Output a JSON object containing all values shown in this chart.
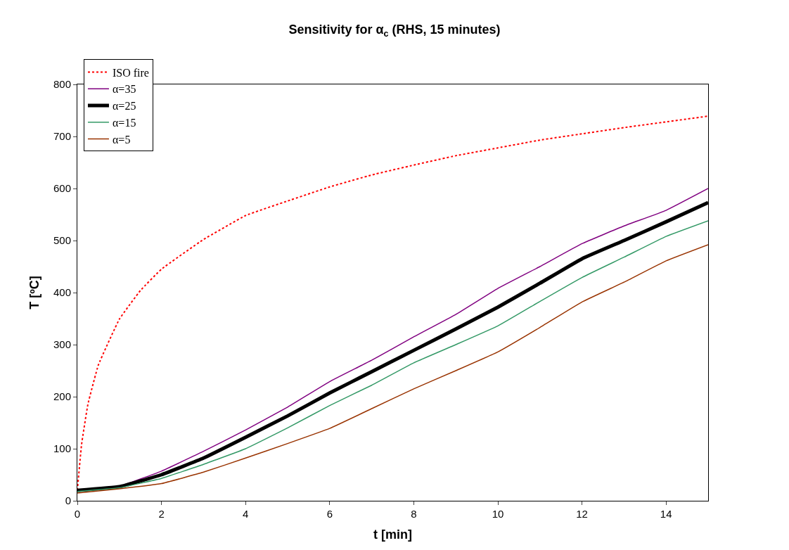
{
  "chart_data": {
    "type": "line",
    "title": "Sensitivity for α$_{c}$ (RHS, 15 minutes)",
    "xlabel": "t [min]",
    "ylabel": "T [ºC]",
    "x": [
      0,
      1,
      2,
      3,
      4,
      5,
      6,
      7,
      8,
      9,
      10,
      11,
      12,
      13,
      14,
      15
    ],
    "series": [
      {
        "name": "ISO fire",
        "color": "#ff0000",
        "line_style": "dotted",
        "x": [
          0,
          0.1,
          0.25,
          0.5,
          1,
          1.5,
          2,
          3,
          4,
          5,
          6,
          7,
          8,
          9,
          10,
          11,
          12,
          13,
          14,
          15
        ],
        "values": [
          20,
          108,
          185,
          261,
          349,
          404,
          445,
          502,
          548,
          576,
          603,
          626,
          645,
          663,
          678,
          693,
          705,
          717,
          728,
          739
        ]
      },
      {
        "name": "α=35",
        "color": "#800080",
        "line_style": "solid",
        "values": [
          20,
          28,
          57,
          95,
          136,
          180,
          229,
          270,
          315,
          358,
          408,
          450,
          494,
          528,
          558,
          600
        ]
      },
      {
        "name": "α=25",
        "color": "#000000",
        "line_style": "solid",
        "values": [
          20,
          27,
          50,
          82,
          122,
          163,
          207,
          248,
          289,
          330,
          372,
          418,
          465,
          500,
          536,
          573
        ]
      },
      {
        "name": "α=15",
        "color": "#339966",
        "line_style": "solid",
        "values": [
          18,
          25,
          43,
          70,
          100,
          140,
          183,
          222,
          265,
          300,
          336,
          383,
          429,
          468,
          508,
          538
        ]
      },
      {
        "name": "α=5",
        "color": "#993300",
        "line_style": "solid",
        "values": [
          15,
          23,
          33,
          55,
          82,
          110,
          139,
          177,
          215,
          250,
          286,
          333,
          382,
          420,
          461,
          492
        ]
      }
    ],
    "xlim": [
      0,
      15
    ],
    "xticks": [
      0,
      2,
      4,
      6,
      8,
      10,
      12,
      14
    ],
    "ylim": [
      0,
      800
    ],
    "yticks": [
      0,
      100,
      200,
      300,
      400,
      500,
      600,
      700,
      800
    ],
    "legend": "top left",
    "marker": "none"
  }
}
